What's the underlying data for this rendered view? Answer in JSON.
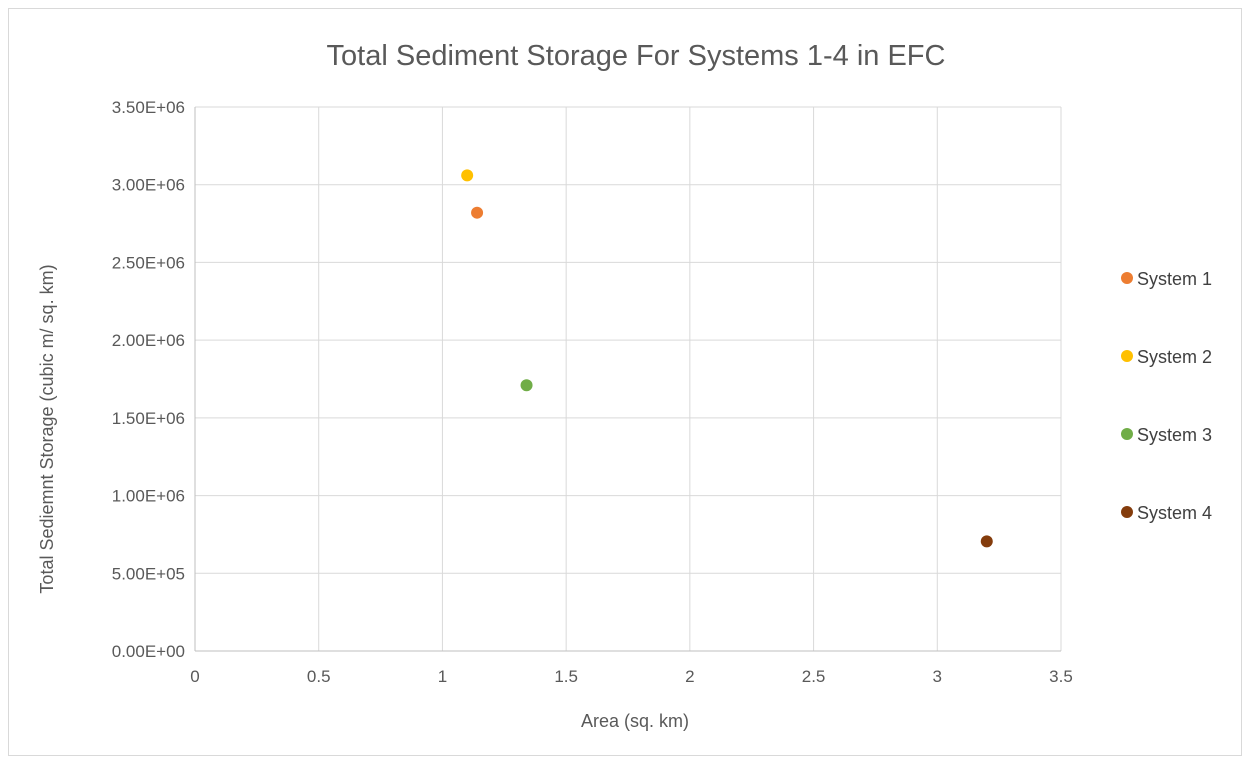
{
  "chart_data": {
    "type": "scatter",
    "title": "Total Sediment Storage For Systems 1-4 in EFC",
    "xlabel": "Area (sq. km)",
    "ylabel": "Total Sediemnt Storage (cubic m/ sq. km)",
    "xlim": [
      0,
      3.5
    ],
    "ylim": [
      0,
      3500000
    ],
    "x_ticks": [
      0,
      0.5,
      1,
      1.5,
      2,
      2.5,
      3,
      3.5
    ],
    "x_tick_labels": [
      "0",
      "0.5",
      "1",
      "1.5",
      "2",
      "2.5",
      "3",
      "3.5"
    ],
    "y_ticks": [
      0,
      500000,
      1000000,
      1500000,
      2000000,
      2500000,
      3000000,
      3500000
    ],
    "y_tick_labels": [
      "0.00E+00",
      "5.00E+05",
      "1.00E+06",
      "1.50E+06",
      "2.00E+06",
      "2.50E+06",
      "3.00E+06",
      "3.50E+06"
    ],
    "grid": true,
    "legend_position": "right",
    "series": [
      {
        "name": "System 1",
        "color": "#ED7D31",
        "points": [
          {
            "x": 1.14,
            "y": 2820000
          }
        ]
      },
      {
        "name": "System 2",
        "color": "#FFC000",
        "points": [
          {
            "x": 1.1,
            "y": 3060000
          }
        ]
      },
      {
        "name": "System 3",
        "color": "#70AD47",
        "points": [
          {
            "x": 1.34,
            "y": 1710000
          }
        ]
      },
      {
        "name": "System 4",
        "color": "#843C0C",
        "points": [
          {
            "x": 3.2,
            "y": 705000
          }
        ]
      }
    ]
  }
}
